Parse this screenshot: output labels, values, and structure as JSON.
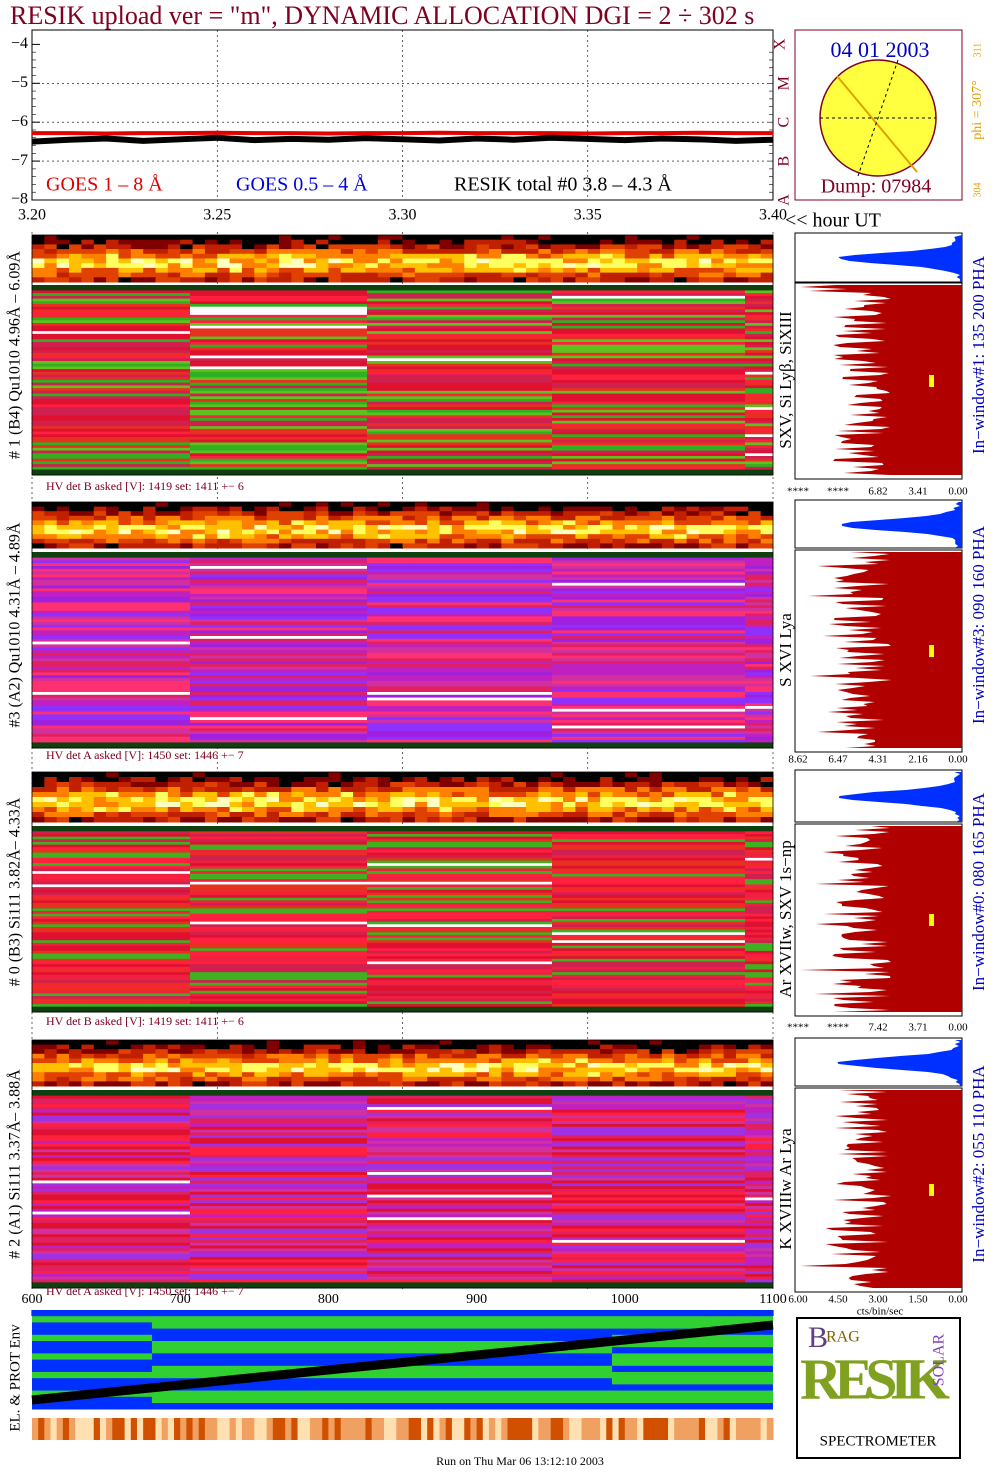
{
  "title": "RESIK upload ver = \"m\", DYNAMIC ALLOCATION  DGI =   2 ÷ 302 s",
  "chart_data": {
    "type": "line",
    "x": [
      3.2,
      3.21,
      3.22,
      3.23,
      3.24,
      3.25,
      3.26,
      3.27,
      3.28,
      3.29,
      3.3,
      3.31,
      3.32,
      3.33,
      3.34,
      3.35,
      3.36,
      3.37,
      3.38,
      3.39,
      3.4
    ],
    "xlim": [
      3.2,
      3.4
    ],
    "xticks": [
      {
        "value": 3.2,
        "label": "3.20"
      },
      {
        "value": 3.25,
        "label": "3.25"
      },
      {
        "value": 3.3,
        "label": "3.30"
      },
      {
        "value": 3.35,
        "label": "3.35"
      },
      {
        "value": 3.4,
        "label": "3.40"
      }
    ],
    "xlabel": "<< hour UT",
    "ylim": [
      -8,
      -3.63
    ],
    "yticks": [
      {
        "value": -4,
        "label": "−4"
      },
      {
        "value": -5,
        "label": "−5"
      },
      {
        "value": -6,
        "label": "−6"
      },
      {
        "value": -7,
        "label": "−7"
      },
      {
        "value": -8,
        "label": "−8"
      }
    ],
    "class_letters": [
      "X",
      "M",
      "C",
      "B",
      "A"
    ],
    "grid": true,
    "series": [
      {
        "name": "GOES 1 – 8 Å",
        "color": "#e00000",
        "values": [
          -6.28,
          -6.28,
          -6.29,
          -6.28,
          -6.28,
          -6.27,
          -6.28,
          -6.28,
          -6.29,
          -6.28,
          -6.28,
          -6.27,
          -6.28,
          -6.28,
          -6.28,
          -6.29,
          -6.28,
          -6.28,
          -6.27,
          -6.28,
          -6.28
        ]
      },
      {
        "name": "GOES 0.5 – 4 Å",
        "color": "#0000e0"
      },
      {
        "name": "RESIK total #0  3.8 – 4.3 Å",
        "color": "#000000",
        "values": [
          -6.5,
          -6.45,
          -6.42,
          -6.48,
          -6.44,
          -6.4,
          -6.46,
          -6.43,
          -6.45,
          -6.41,
          -6.44,
          -6.47,
          -6.42,
          -6.45,
          -6.4,
          -6.43,
          -6.46,
          -6.42,
          -6.44,
          -6.48,
          -6.45
        ]
      }
    ]
  },
  "sun": {
    "date": "04 01 2003",
    "dump": "Dump: 07984",
    "phi": "phi = 307°",
    "phi_top": "311",
    "phi_bottom": "304"
  },
  "detectors": [
    {
      "ylabel": "# 1 (B4) Qu1010 4.96Å – 6.09Å",
      "hv": "HV det B asked [V]:  1419 set:  1411  +−    6",
      "lines": "SXV, Si Lyβ, SiXIII",
      "window": "In−window#1:  135 200 PHA",
      "scale": [
        "****",
        "****",
        "6.82",
        "3.41",
        "0.00"
      ]
    },
    {
      "ylabel": "#3 (A2) Qu1010  4.31Å – 4.89Å",
      "hv": "HV det A asked [V]:  1450 set:  1446  +−    7",
      "lines": "S XVI Lya",
      "window": "In−window#3:  090 160 PHA",
      "scale": [
        "8.62",
        "6.47",
        "4.31",
        "2.16",
        "0.00"
      ]
    },
    {
      "ylabel": "# 0 (B3) Si111  3.82Å– 4.33Å",
      "hv": "HV det B asked [V]:  1419 set:  1411  +−    6",
      "lines": "Ar XVIIw,  SXV 1s−np",
      "window": "In−window#0:  080 165 PHA",
      "scale": [
        "****",
        "****",
        "7.42",
        "3.71",
        "0.00"
      ]
    },
    {
      "ylabel": "# 2 (A1) Si111  3.37Å– 3.88Å",
      "hv": "HV det A asked [V]:  1450 set:  1446  +−    7",
      "lines": "K XVIIIw  Ar Lya",
      "window": "In−window#2:  055 110 PHA",
      "scale": [
        "6.00",
        "4.50",
        "3.00",
        "1.50",
        "0.00"
      ]
    }
  ],
  "hist_unit": "cts/bin/sec",
  "env": {
    "xlim": [
      600,
      1100
    ],
    "xticks": [
      600,
      700,
      800,
      900,
      1000,
      1100
    ],
    "ylabel": "EL. & PROT Env"
  },
  "logo": {
    "a": "B",
    "b": "RAG",
    "c": "RESIK",
    "d": "SOLAR",
    "e": "SPECTROMETER"
  },
  "footer": "Run on Thu Mar 06 13:12:10 2003"
}
